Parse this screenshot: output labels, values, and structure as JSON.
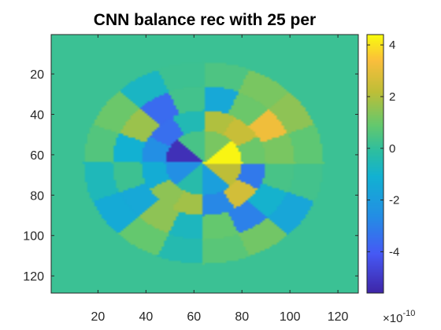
{
  "chart_data": {
    "type": "heatmap",
    "title": "CNN balance rec with 25 per",
    "xlabel": "",
    "ylabel": "",
    "grid_size": [
      128,
      128
    ],
    "xlim": [
      0.5,
      128.5
    ],
    "ylim": [
      0.5,
      128.5
    ],
    "y_direction": "reverse",
    "x_ticks": [
      20,
      40,
      60,
      80,
      100,
      120
    ],
    "y_ticks": [
      20,
      40,
      60,
      80,
      100,
      120
    ],
    "colormap": "parula",
    "clim": [
      -5.6,
      4.4
    ],
    "colorbar_ticks": [
      4,
      2,
      0,
      -2,
      -4
    ],
    "colorbar_exponent": "×10",
    "colorbar_exponent_power": "-10",
    "background_value": 0.15,
    "center": [
      64,
      64
    ],
    "outer_radius": 50,
    "ring_edges": [
      16,
      26,
      38,
      50
    ],
    "rings": [
      {
        "sectors": 8,
        "values": [
          4.3,
          1.2,
          0.4,
          -5.3,
          -2.6,
          -0.3,
          -1.9,
          2.2
        ]
      },
      {
        "sectors": 12,
        "values": [
          1.0,
          2.4,
          2.0,
          -0.5,
          -3.5,
          -2.6,
          -1.3,
          1.5,
          1.8,
          -2.8,
          2.6,
          -3.2
        ]
      },
      {
        "sectors": 16,
        "values": [
          1.2,
          3.2,
          1.0,
          -1.5,
          0.3,
          -3.6,
          1.7,
          -1.1,
          0.2,
          -1.5,
          1.5,
          -0.7,
          0.9,
          -3.0,
          -1.0,
          0.4
        ]
      },
      {
        "sectors": 16,
        "values": [
          0.8,
          1.5,
          1.2,
          0.5,
          0.2,
          -0.8,
          1.0,
          0.6,
          -0.6,
          -1.4,
          0.9,
          -0.4,
          0.7,
          1.1,
          -1.6,
          0.3
        ]
      }
    ]
  }
}
